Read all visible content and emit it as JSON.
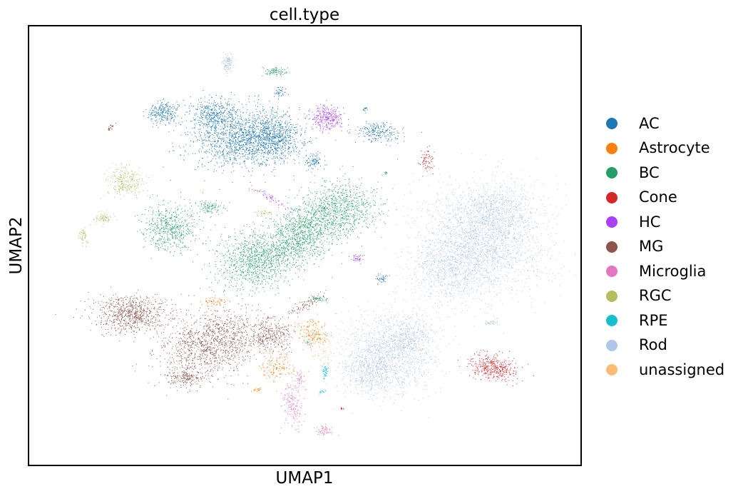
{
  "chart_data": {
    "type": "scatter",
    "title": "cell.type",
    "xlabel": "UMAP1",
    "ylabel": "UMAP2",
    "grid": false,
    "legend_placement": "right",
    "series": [
      {
        "name": "AC",
        "color": "#1f77b4"
      },
      {
        "name": "Astrocyte",
        "color": "#ff7f0e"
      },
      {
        "name": "BC",
        "color": "#279e68"
      },
      {
        "name": "Cone",
        "color": "#d62728"
      },
      {
        "name": "HC",
        "color": "#aa40fc"
      },
      {
        "name": "MG",
        "color": "#8c564b"
      },
      {
        "name": "Microglia",
        "color": "#e377c2"
      },
      {
        "name": "RGC",
        "color": "#b5bd61"
      },
      {
        "name": "RPE",
        "color": "#17becf"
      },
      {
        "name": "Rod",
        "color": "#aec7e8"
      },
      {
        "name": "unassigned",
        "color": "#ffbb78"
      }
    ]
  }
}
